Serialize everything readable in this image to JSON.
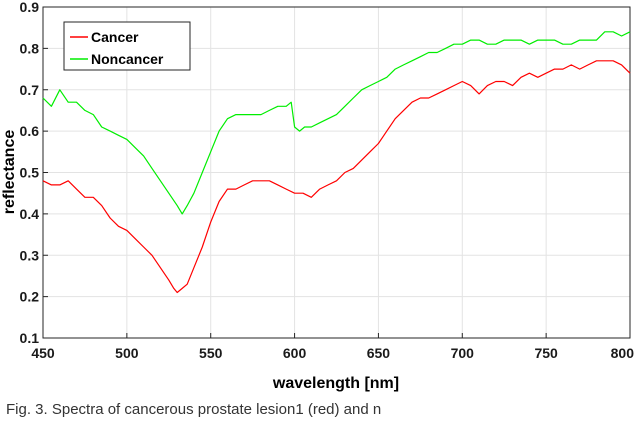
{
  "chart_data": {
    "type": "line",
    "xlabel": "wavelength [nm]",
    "ylabel": "reflectance",
    "xlim": [
      450,
      800
    ],
    "ylim": [
      0.1,
      0.9
    ],
    "xticks": [
      450,
      500,
      550,
      600,
      650,
      700,
      750,
      800
    ],
    "yticks": [
      0.1,
      0.2,
      0.3,
      0.4,
      0.5,
      0.6,
      0.7,
      0.8,
      0.9
    ],
    "grid": true,
    "legend_position": "top-left",
    "series": [
      {
        "name": "Cancer",
        "color": "#ff0000",
        "x": [
          450,
          455,
          460,
          465,
          470,
          475,
          480,
          485,
          490,
          495,
          500,
          505,
          510,
          515,
          520,
          525,
          528,
          530,
          533,
          536,
          540,
          545,
          550,
          555,
          560,
          565,
          570,
          575,
          580,
          585,
          590,
          595,
          600,
          605,
          610,
          615,
          620,
          625,
          630,
          635,
          640,
          645,
          650,
          655,
          660,
          665,
          670,
          675,
          680,
          685,
          690,
          695,
          700,
          705,
          710,
          715,
          720,
          725,
          730,
          735,
          740,
          745,
          750,
          755,
          760,
          765,
          770,
          775,
          780,
          785,
          790,
          795,
          800
        ],
        "y": [
          0.48,
          0.47,
          0.47,
          0.48,
          0.46,
          0.44,
          0.44,
          0.42,
          0.39,
          0.37,
          0.36,
          0.34,
          0.32,
          0.3,
          0.27,
          0.24,
          0.22,
          0.21,
          0.22,
          0.23,
          0.27,
          0.32,
          0.38,
          0.43,
          0.46,
          0.46,
          0.47,
          0.48,
          0.48,
          0.48,
          0.47,
          0.46,
          0.45,
          0.45,
          0.44,
          0.46,
          0.47,
          0.48,
          0.5,
          0.51,
          0.53,
          0.55,
          0.57,
          0.6,
          0.63,
          0.65,
          0.67,
          0.68,
          0.68,
          0.69,
          0.7,
          0.71,
          0.72,
          0.71,
          0.69,
          0.71,
          0.72,
          0.72,
          0.71,
          0.73,
          0.74,
          0.73,
          0.74,
          0.75,
          0.75,
          0.76,
          0.75,
          0.76,
          0.77,
          0.77,
          0.77,
          0.76,
          0.74
        ]
      },
      {
        "name": "Noncancer",
        "color": "#00ee00",
        "x": [
          450,
          455,
          460,
          465,
          470,
          475,
          480,
          485,
          490,
          495,
          500,
          505,
          510,
          515,
          520,
          525,
          530,
          533,
          536,
          540,
          545,
          550,
          555,
          560,
          565,
          570,
          575,
          580,
          585,
          590,
          595,
          598,
          600,
          603,
          606,
          610,
          615,
          620,
          625,
          630,
          635,
          640,
          645,
          650,
          655,
          660,
          665,
          670,
          675,
          680,
          685,
          690,
          695,
          700,
          705,
          710,
          715,
          720,
          725,
          730,
          735,
          740,
          745,
          750,
          755,
          760,
          765,
          770,
          775,
          780,
          785,
          790,
          795,
          800
        ],
        "y": [
          0.68,
          0.66,
          0.7,
          0.67,
          0.67,
          0.65,
          0.64,
          0.61,
          0.6,
          0.59,
          0.58,
          0.56,
          0.54,
          0.51,
          0.48,
          0.45,
          0.42,
          0.4,
          0.42,
          0.45,
          0.5,
          0.55,
          0.6,
          0.63,
          0.64,
          0.64,
          0.64,
          0.64,
          0.65,
          0.66,
          0.66,
          0.67,
          0.61,
          0.6,
          0.61,
          0.61,
          0.62,
          0.63,
          0.64,
          0.66,
          0.68,
          0.7,
          0.71,
          0.72,
          0.73,
          0.75,
          0.76,
          0.77,
          0.78,
          0.79,
          0.79,
          0.8,
          0.81,
          0.81,
          0.82,
          0.82,
          0.81,
          0.81,
          0.82,
          0.82,
          0.82,
          0.81,
          0.82,
          0.82,
          0.82,
          0.81,
          0.81,
          0.82,
          0.82,
          0.82,
          0.84,
          0.84,
          0.83,
          0.84
        ]
      }
    ]
  },
  "caption": "Fig. 3.  Spectra of cancerous prostate lesion1 (red) and n"
}
